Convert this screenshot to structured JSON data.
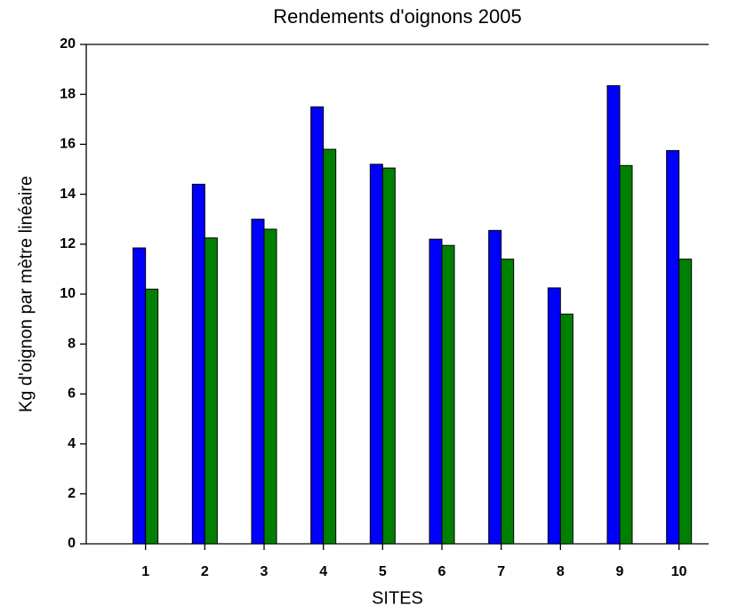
{
  "chart_data": {
    "type": "bar",
    "title": "Rendements d'oignons 2005",
    "x_label": "SITES",
    "y_label": "Kg d'oignon par mètre linéaire",
    "categories": [
      "1",
      "2",
      "3",
      "4",
      "5",
      "6",
      "7",
      "8",
      "9",
      "10"
    ],
    "series": [
      {
        "color": "#0000ff",
        "values": [
          11.85,
          14.4,
          13.0,
          17.5,
          15.2,
          12.2,
          12.55,
          10.25,
          18.35,
          15.75
        ]
      },
      {
        "color": "#008000",
        "values": [
          10.2,
          12.25,
          12.6,
          15.8,
          15.05,
          11.95,
          11.4,
          9.2,
          15.15,
          11.4
        ]
      }
    ],
    "ylim": [
      0,
      20
    ],
    "yticks": [
      0,
      2,
      4,
      6,
      8,
      10,
      12,
      14,
      16,
      18,
      20
    ],
    "grid": false
  }
}
